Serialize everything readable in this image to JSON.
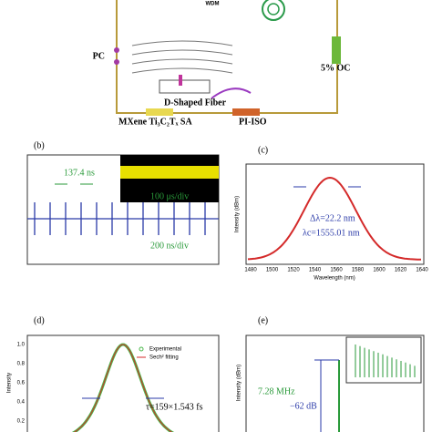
{
  "setup": {
    "wdm": "WDM",
    "pc": "PC",
    "oc": "5% OC",
    "fiber": "D-Shaped Fiber",
    "sa": "MXene Ti₃C₂Tₓ SA",
    "iso": "PI-ISO"
  },
  "panel_b": {
    "label": "(b)",
    "spacing": "137.4 ns",
    "inset_scale": "100 μs/div",
    "scale": "200 ns/div"
  },
  "panel_c": {
    "label": "(c)",
    "ylabel": "Intensity (dBm)",
    "xlabel": "Wavelength (nm)",
    "bandwidth": "Δλ=22.2 nm",
    "center": "λc=1555.01 nm",
    "xticks": [
      "1480",
      "1500",
      "1520",
      "1540",
      "1560",
      "1580",
      "1600",
      "1620",
      "1640"
    ]
  },
  "panel_d": {
    "label": "(d)",
    "ylabel": "Intensity",
    "legend": [
      "Experimental",
      "Sech² fitting"
    ],
    "width": "τ=159×1.543 fs",
    "yticks": [
      "1.0",
      "0.8",
      "0.6",
      "0.4",
      "0.2"
    ]
  },
  "panel_e": {
    "label": "(e)",
    "ylabel": "Intensity (dBm)",
    "rate": "7.28 MHz",
    "snr": "−62 dB"
  }
}
